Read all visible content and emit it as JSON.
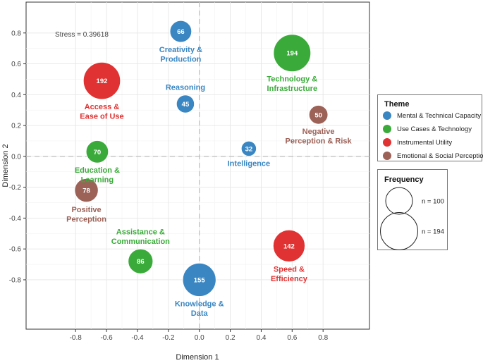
{
  "chart_data": {
    "type": "scatter",
    "subtype": "bubble",
    "xlabel": "Dimension 1",
    "ylabel": "Dimension 2",
    "xlim": [
      -1.12,
      1.1
    ],
    "ylim": [
      -1.12,
      1.0
    ],
    "x_ticks": [
      "-0.8",
      "-0.6",
      "-0.4",
      "-0.2",
      "0.0",
      "0.2",
      "0.4",
      "0.6",
      "0.8"
    ],
    "y_ticks": [
      "0.8",
      "0.6",
      "0.4",
      "0.2",
      "0.0",
      "-0.2",
      "-0.4",
      "-0.6",
      "-0.8"
    ],
    "x_tick_values": [
      -0.8,
      -0.6,
      -0.4,
      -0.2,
      0.0,
      0.2,
      0.4,
      0.6,
      0.8
    ],
    "y_tick_values": [
      0.8,
      0.6,
      0.4,
      0.2,
      0.0,
      -0.2,
      -0.4,
      -0.6,
      -0.8
    ],
    "grid": true,
    "reference_lines": {
      "x": 0,
      "y": 0,
      "style": "dashed"
    },
    "annotation": "Stress = 0.39618",
    "themes": [
      {
        "name": "Mental & Technical Capacity",
        "color": "#3a86c2"
      },
      {
        "name": "Use Cases & Technology",
        "color": "#3aab3a"
      },
      {
        "name": "Instrumental Utility",
        "color": "#e03232"
      },
      {
        "name": "Emotional & Social Perception",
        "color": "#9c6258"
      }
    ],
    "points": [
      {
        "label": [
          "Creativity &",
          "Production"
        ],
        "x": -0.12,
        "y": 0.81,
        "n": 66,
        "theme": 0,
        "label_pos": "below"
      },
      {
        "label": [
          "Reasoning"
        ],
        "x": -0.09,
        "y": 0.34,
        "n": 45,
        "theme": 0,
        "label_pos": "above"
      },
      {
        "label": [
          "Intelligence"
        ],
        "x": 0.32,
        "y": 0.05,
        "n": 32,
        "theme": 0,
        "label_pos": "below"
      },
      {
        "label": [
          "Knowledge &",
          "Data"
        ],
        "x": 0.0,
        "y": -0.8,
        "n": 155,
        "theme": 0,
        "label_pos": "below"
      },
      {
        "label": [
          "Technology &",
          "Infrastructure"
        ],
        "x": 0.6,
        "y": 0.67,
        "n": 194,
        "theme": 1,
        "label_pos": "below"
      },
      {
        "label": [
          "Education &",
          "Learning"
        ],
        "x": -0.66,
        "y": 0.03,
        "n": 70,
        "theme": 1,
        "label_pos": "below"
      },
      {
        "label": [
          "Assistance &",
          "Communication"
        ],
        "x": -0.38,
        "y": -0.68,
        "n": 86,
        "theme": 1,
        "label_pos": "above"
      },
      {
        "label": [
          "Access &",
          "Ease of Use"
        ],
        "x": -0.63,
        "y": 0.49,
        "n": 192,
        "theme": 2,
        "label_pos": "below"
      },
      {
        "label": [
          "Speed &",
          "Efficiency"
        ],
        "x": 0.58,
        "y": -0.58,
        "n": 142,
        "theme": 2,
        "label_pos": "below"
      },
      {
        "label": [
          "Negative",
          "Perception & Risk"
        ],
        "x": 0.77,
        "y": 0.27,
        "n": 50,
        "theme": 3,
        "label_pos": "below"
      },
      {
        "label": [
          "Positive",
          "Perception"
        ],
        "x": -0.73,
        "y": -0.22,
        "n": 78,
        "theme": 3,
        "label_pos": "below"
      }
    ],
    "legend": {
      "theme_title": "Theme",
      "frequency_title": "Frequency",
      "frequency_items": [
        {
          "n": 100,
          "label": "n = 100"
        },
        {
          "n": 194,
          "label": "n = 194"
        }
      ],
      "placement": "right"
    }
  }
}
